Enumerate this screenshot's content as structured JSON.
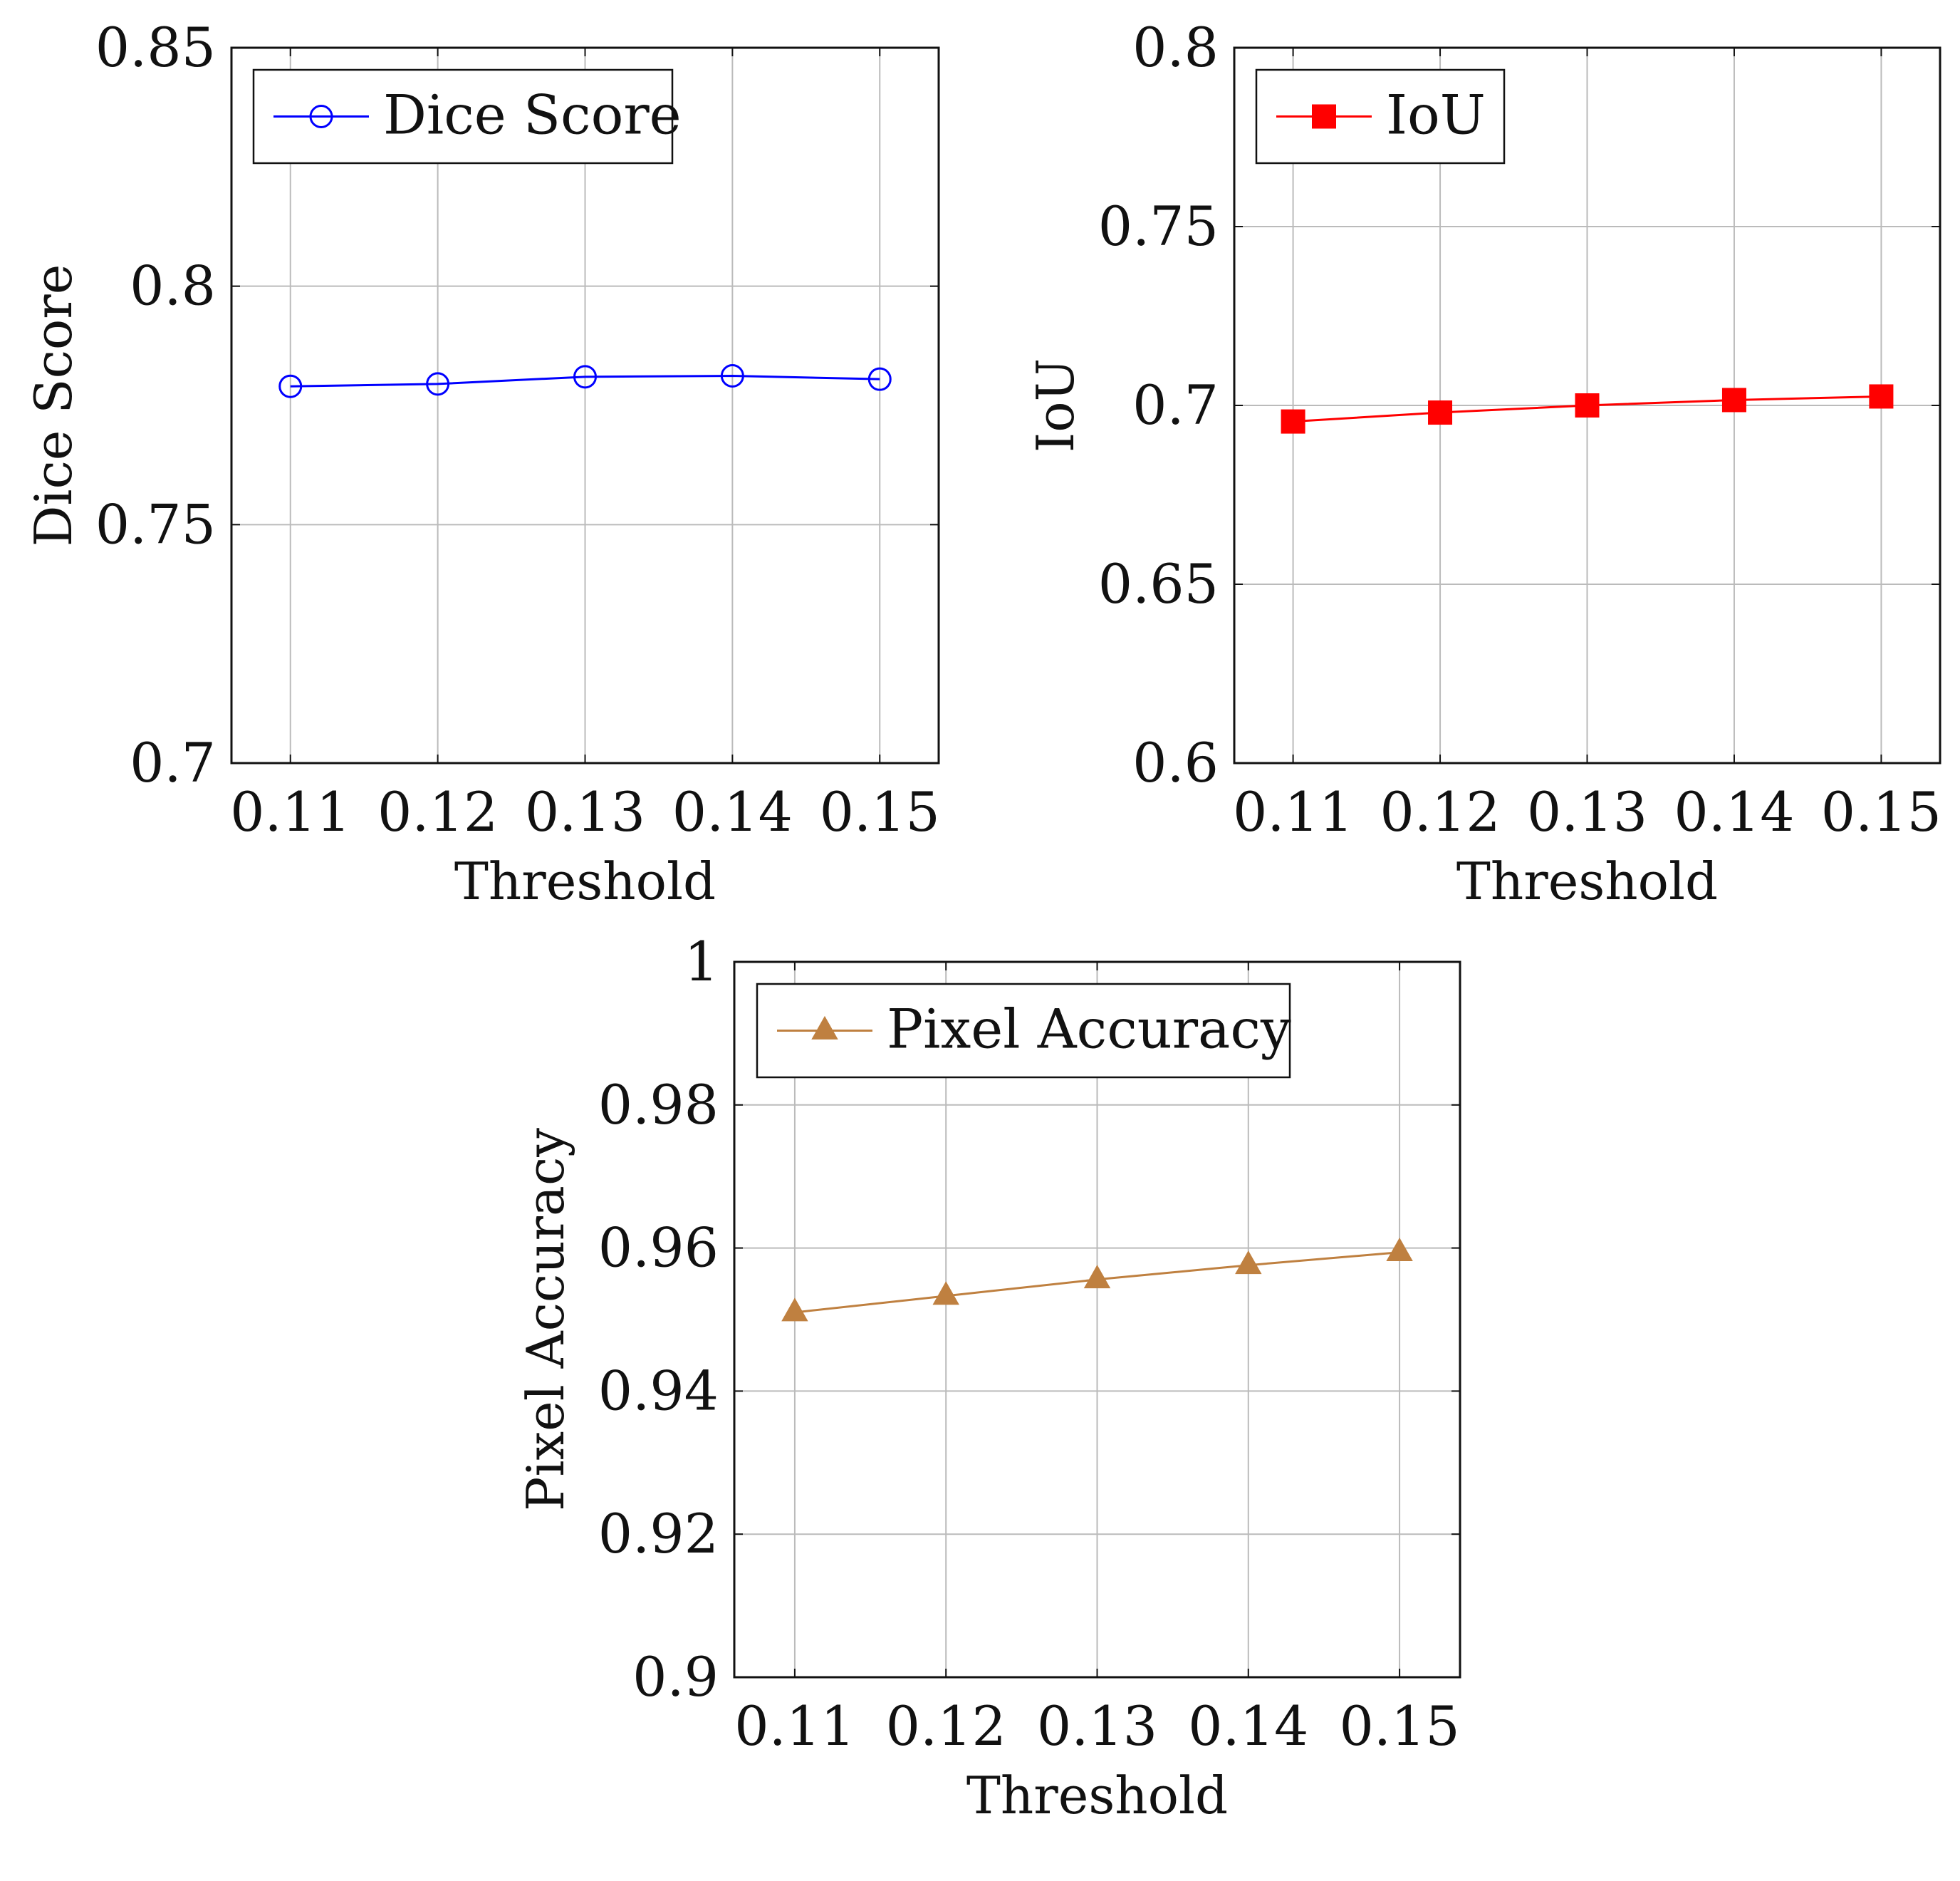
{
  "chart_data": [
    {
      "type": "line",
      "x": [
        0.11,
        0.12,
        0.13,
        0.14,
        0.15
      ],
      "x_tick_labels": [
        "0.11",
        "0.12",
        "0.13",
        "0.14",
        "0.15"
      ],
      "series": [
        {
          "name": "Dice Score",
          "values": [
            0.779,
            0.7795,
            0.781,
            0.7812,
            0.7805
          ],
          "color": "#0000ff",
          "marker": "circle-open"
        }
      ],
      "xlabel": "Threshold",
      "ylabel": "Dice Score",
      "ylim": [
        0.7,
        0.85
      ],
      "y_ticks": [
        0.7,
        0.75,
        0.8,
        0.85
      ],
      "y_tick_labels": [
        "0.7",
        "0.75",
        "0.8",
        "0.85"
      ],
      "grid": true,
      "legend_position": "top-left"
    },
    {
      "type": "line",
      "x": [
        0.11,
        0.12,
        0.13,
        0.14,
        0.15
      ],
      "x_tick_labels": [
        "0.11",
        "0.12",
        "0.13",
        "0.14",
        "0.15"
      ],
      "series": [
        {
          "name": "IoU",
          "values": [
            0.6955,
            0.698,
            0.7,
            0.7015,
            0.7025
          ],
          "color": "#ff0000",
          "marker": "square-filled"
        }
      ],
      "xlabel": "Threshold",
      "ylabel": "IoU",
      "ylim": [
        0.6,
        0.8
      ],
      "y_ticks": [
        0.6,
        0.65,
        0.7,
        0.75,
        0.8
      ],
      "y_tick_labels": [
        "0.6",
        "0.65",
        "0.7",
        "0.75",
        "0.8"
      ],
      "grid": true,
      "legend_position": "top-left"
    },
    {
      "type": "line",
      "x": [
        0.11,
        0.12,
        0.13,
        0.14,
        0.15
      ],
      "x_tick_labels": [
        "0.11",
        "0.12",
        "0.13",
        "0.14",
        "0.15"
      ],
      "series": [
        {
          "name": "Pixel Accuracy",
          "values": [
            0.951,
            0.9533,
            0.9556,
            0.9576,
            0.9594
          ],
          "color": "#bf8040",
          "marker": "triangle-filled"
        }
      ],
      "xlabel": "Threshold",
      "ylabel": "Pixel Accuracy",
      "ylim": [
        0.9,
        1
      ],
      "y_ticks": [
        0.9,
        0.92,
        0.94,
        0.96,
        0.98,
        1
      ],
      "y_tick_labels": [
        "0.9",
        "0.92",
        "0.94",
        "0.96",
        "0.98",
        "1"
      ],
      "grid": true,
      "legend_position": "top-left"
    }
  ]
}
